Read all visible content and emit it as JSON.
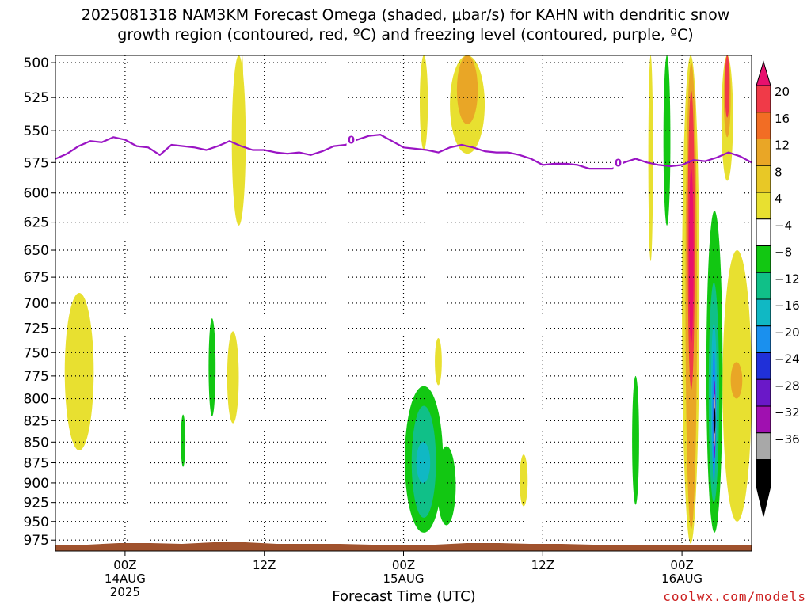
{
  "title": {
    "line1": "2025081318 NAM3KM Forecast Omega (shaded, μbar/s) for KAHN with dendritic snow",
    "line2": "growth region (contoured, red, ºC) and freezing level (contoured, purple, ºC)"
  },
  "credit": "coolwx.com/models",
  "chart_data": {
    "type": "heatmap",
    "xlabel": "Forecast Time (UTC)",
    "ylabel": "",
    "x_unit": "hours after 2025-08-13 18Z",
    "xlim": [
      0,
      60
    ],
    "x_ticks": [
      {
        "t": 6,
        "lines": [
          "00Z",
          "14AUG",
          "2025"
        ]
      },
      {
        "t": 18,
        "lines": [
          "12Z"
        ]
      },
      {
        "t": 30,
        "lines": [
          "00Z",
          "15AUG"
        ]
      },
      {
        "t": 42,
        "lines": [
          "12Z"
        ]
      },
      {
        "t": 54,
        "lines": [
          "00Z",
          "16AUG"
        ]
      }
    ],
    "y_ticks": [
      500,
      525,
      550,
      575,
      600,
      625,
      650,
      675,
      700,
      725,
      750,
      775,
      800,
      825,
      850,
      875,
      900,
      925,
      950,
      975
    ],
    "y_scale": "log",
    "ylim": [
      990,
      495
    ],
    "grid": true,
    "colorbar": {
      "levels": [
        "20",
        "16",
        "12",
        "8",
        "4",
        "−4",
        "−8",
        "−12",
        "−16",
        "−20",
        "−24",
        "−28",
        "−32",
        "−36"
      ],
      "colors": [
        "#f03a48",
        "#f26d24",
        "#e9a626",
        "#e8c826",
        "#e8e030",
        "#ffffff",
        "#12c712",
        "#10c088",
        "#10b8c4",
        "#1a90ee",
        "#2030d8",
        "#6a18c8",
        "#a010b0",
        "#a8a8a8",
        "#000000"
      ],
      "top_color": "#e8106e",
      "bottom_color": "#000000"
    },
    "freezing_level": {
      "label": "0",
      "color": "#9a14c4",
      "t": [
        0,
        1,
        2,
        3,
        4,
        5,
        6,
        7,
        8,
        9,
        10,
        11,
        12,
        13,
        14,
        15,
        16,
        17,
        18,
        19,
        20,
        21,
        22,
        23,
        24,
        25,
        26,
        27,
        28,
        29,
        30,
        31,
        32,
        33,
        34,
        35,
        36,
        37,
        38,
        39,
        40,
        41,
        42,
        43,
        44,
        45,
        46,
        47,
        48,
        49,
        50,
        51,
        52,
        53,
        54,
        55,
        56,
        57,
        58,
        59,
        60
      ],
      "p": [
        572,
        568,
        562,
        558,
        559,
        555,
        557,
        562,
        563,
        569,
        561,
        562,
        563,
        565,
        562,
        558,
        562,
        565,
        565,
        567,
        568,
        567,
        569,
        566,
        562,
        561,
        557,
        554,
        553,
        558,
        563,
        564,
        565,
        567,
        563,
        561,
        563,
        566,
        567,
        567,
        569,
        572,
        577,
        576,
        576,
        577,
        580,
        580,
        580,
        575,
        572,
        575,
        577,
        578,
        577,
        573,
        574,
        571,
        567,
        570,
        575
      ]
    },
    "omega_regions": [
      {
        "color": "#e8e030",
        "t": [
          0.8,
          3.3
        ],
        "p": [
          860,
          690
        ]
      },
      {
        "color": "#12c712",
        "t": [
          10.8,
          11.2
        ],
        "p": [
          880,
          818
        ]
      },
      {
        "color": "#12c712",
        "t": [
          13.2,
          13.8
        ],
        "p": [
          820,
          715
        ]
      },
      {
        "color": "#e8e030",
        "t": [
          14.8,
          15.8
        ],
        "p": [
          828,
          728
        ]
      },
      {
        "color": "#e8e030",
        "t": [
          15.2,
          16.4
        ],
        "p": [
          628,
          495
        ]
      },
      {
        "color": "#e8e030",
        "t": [
          16.0,
          16.2
        ],
        "p": [
          567,
          495
        ]
      },
      {
        "color": "#e8e030",
        "t": [
          31.4,
          32.1
        ],
        "p": [
          565,
          495
        ]
      },
      {
        "color": "#e8e030",
        "t": [
          32.7,
          33.3
        ],
        "p": [
          785,
          735
        ]
      },
      {
        "color": "#12c712",
        "t": [
          30.1,
          33.4
        ],
        "p": [
          965,
          786
        ]
      },
      {
        "color": "#10c088",
        "t": [
          30.7,
          32.8
        ],
        "p": [
          945,
          808
        ]
      },
      {
        "color": "#10b8c4",
        "t": [
          31.1,
          32.3
        ],
        "p": [
          900,
          850
        ]
      },
      {
        "color": "#12c712",
        "t": [
          32.9,
          34.5
        ],
        "p": [
          955,
          855
        ]
      },
      {
        "color": "#e8e030",
        "t": [
          34.0,
          37.0
        ],
        "p": [
          568,
          495
        ]
      },
      {
        "color": "#e9a626",
        "t": [
          34.6,
          36.4
        ],
        "p": [
          545,
          495
        ]
      },
      {
        "color": "#e8e030",
        "t": [
          40.0,
          40.7
        ],
        "p": [
          930,
          865
        ]
      },
      {
        "color": "#12c712",
        "t": [
          49.7,
          50.3
        ],
        "p": [
          928,
          775
        ]
      },
      {
        "color": "#e8e030",
        "t": [
          51.1,
          51.5
        ],
        "p": [
          660,
          495
        ]
      },
      {
        "color": "#12c712",
        "t": [
          52.4,
          53.0
        ],
        "p": [
          628,
          495
        ]
      },
      {
        "color": "#e8e030",
        "t": [
          54.0,
          55.5
        ],
        "p": [
          980,
          495
        ]
      },
      {
        "color": "#e9a626",
        "t": [
          54.3,
          55.3
        ],
        "p": [
          960,
          500
        ]
      },
      {
        "color": "#f03a48",
        "t": [
          54.5,
          55.1
        ],
        "p": [
          790,
          520
        ]
      },
      {
        "color": "#e8106e",
        "t": [
          54.6,
          55.0
        ],
        "p": [
          740,
          580
        ]
      },
      {
        "color": "#12c712",
        "t": [
          56.1,
          57.5
        ],
        "p": [
          965,
          615
        ]
      },
      {
        "color": "#10c088",
        "t": [
          56.3,
          57.2
        ],
        "p": [
          925,
          680
        ]
      },
      {
        "color": "#10b8c4",
        "t": [
          56.5,
          57.0
        ],
        "p": [
          885,
          720
        ]
      },
      {
        "color": "#1a90ee",
        "t": [
          56.6,
          56.9
        ],
        "p": [
          900,
          745
        ]
      },
      {
        "color": "#6a18c8",
        "t": [
          56.7,
          56.9
        ],
        "p": [
          870,
          780
        ]
      },
      {
        "color": "#a8a8a8",
        "t": [
          56.75,
          56.85
        ],
        "p": [
          855,
          795
        ]
      },
      {
        "color": "#000000",
        "t": [
          56.77,
          56.83
        ],
        "p": [
          840,
          810
        ]
      },
      {
        "color": "#e8e030",
        "t": [
          57.5,
          60.0
        ],
        "p": [
          950,
          650
        ]
      },
      {
        "color": "#e9a626",
        "t": [
          58.2,
          59.2
        ],
        "p": [
          800,
          760
        ]
      },
      {
        "color": "#e8e030",
        "t": [
          57.4,
          58.4
        ],
        "p": [
          590,
          495
        ]
      },
      {
        "color": "#e9a626",
        "t": [
          57.6,
          58.2
        ],
        "p": [
          555,
          495
        ]
      },
      {
        "color": "#f03a48",
        "t": [
          57.7,
          58.1
        ],
        "p": [
          540,
          495
        ]
      }
    ],
    "ground": {
      "color": "#a0522d"
    }
  }
}
